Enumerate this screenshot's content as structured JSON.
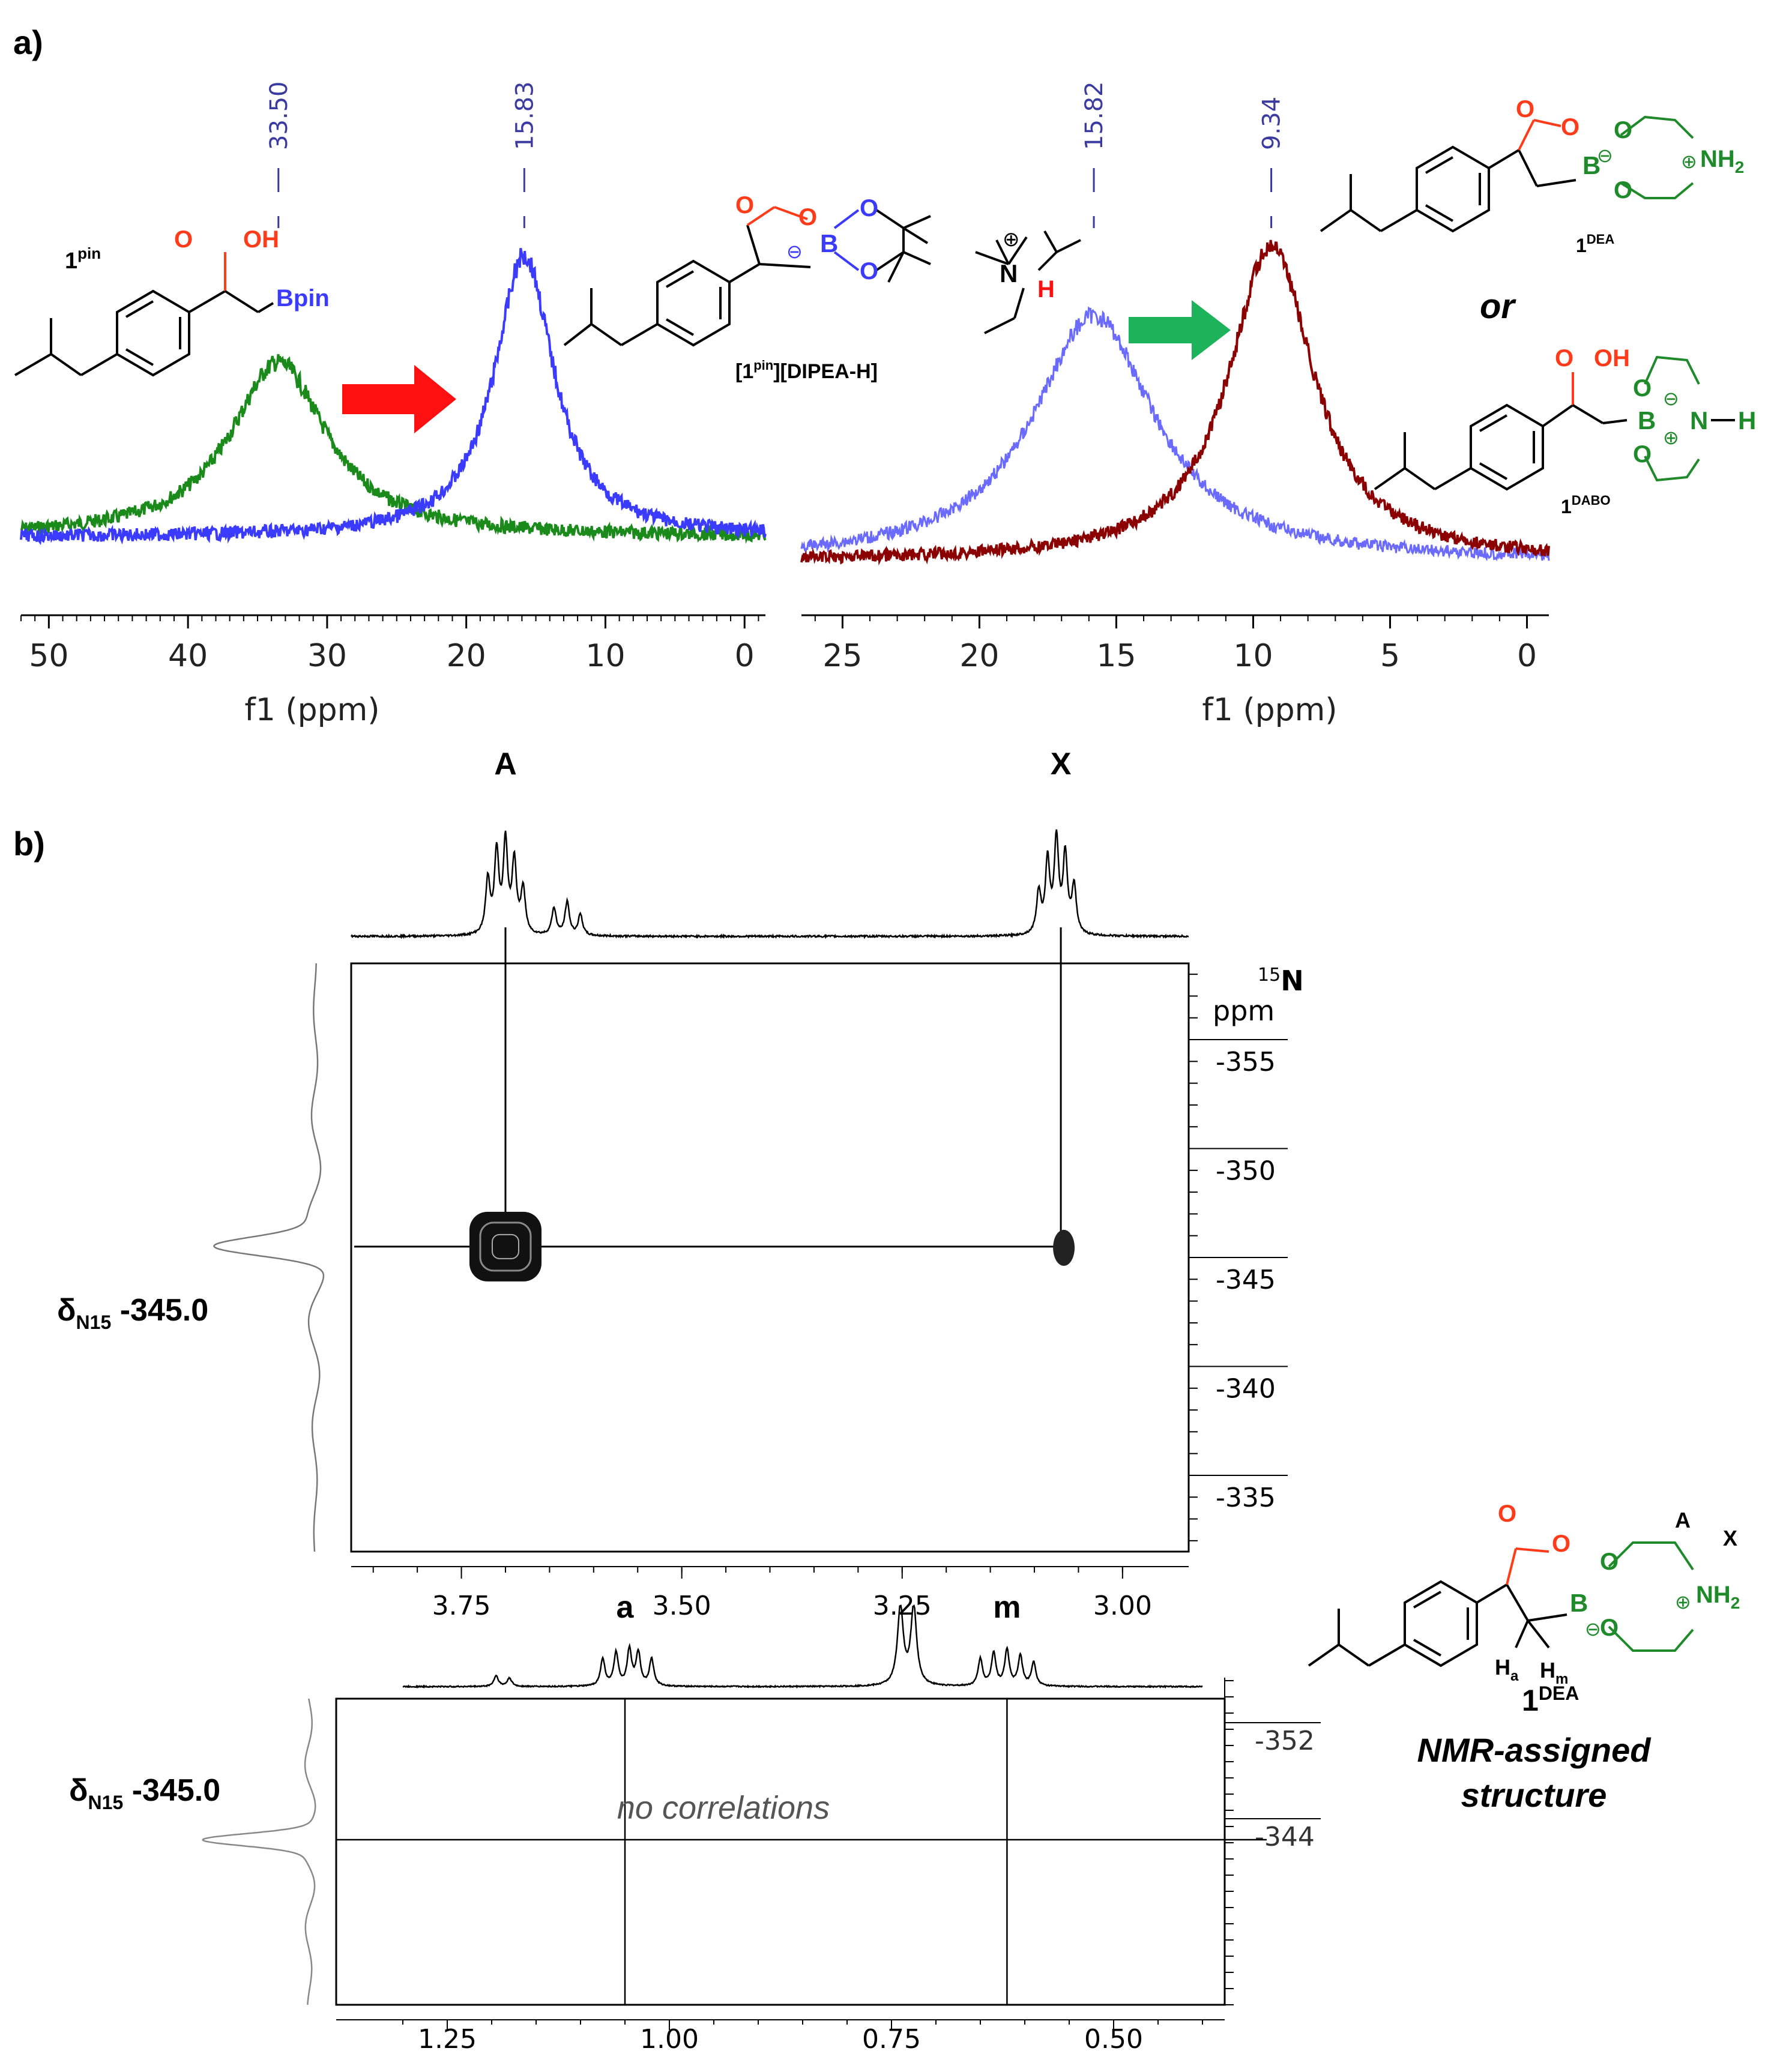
{
  "panels": {
    "a_label": "a)",
    "b_label": "b)"
  },
  "structures": {
    "pin": {
      "label_main": "1",
      "label_sup": "pin",
      "oh": "OH",
      "o_carbonyl": "O",
      "bpin": "Bpin"
    },
    "dipea_salt": {
      "label": "[1",
      "label_sup": "pin",
      "label_rest": "][DIPEA-H]",
      "o1": "O",
      "o2": "O",
      "o3": "O",
      "o4": "O",
      "b": "B",
      "minus": "⊖",
      "n": "N",
      "h": "H",
      "plus": "⊕"
    },
    "dea": {
      "label_main": "1",
      "label_sup": "DEA",
      "o_carbonyl": "O",
      "o_ring": "O",
      "b": "B",
      "minus": "⊖",
      "o_upper": "O",
      "o_lower": "O",
      "plus": "⊕",
      "nh2": "NH",
      "nh2_sub": "2"
    },
    "or_text": "or",
    "dabo": {
      "label_main": "1",
      "label_sup": "DABO",
      "o_carbonyl": "O",
      "oh": "OH",
      "o_upper": "O",
      "o_lower": "O",
      "b": "B",
      "minus": "⊖",
      "plus": "⊕",
      "n": "N",
      "h": "H"
    },
    "assigned": {
      "label_main": "1",
      "label_sup": "DEA",
      "caption_line1": "NMR-assigned",
      "caption_line2": "structure",
      "a": "A",
      "x": "X",
      "ha": "H",
      "ha_sub": "a",
      "hm": "H",
      "hm_sub": "m",
      "o_carbonyl": "O",
      "o_ring": "O",
      "b": "B",
      "minus": "⊖",
      "o_upper": "O",
      "o_lower": "O",
      "plus": "⊕",
      "nh2": "NH",
      "nh2_sub": "2"
    }
  },
  "colors": {
    "green": "#1a8a1a",
    "blue": "#3b3bff",
    "blue_light": "#6a6aff",
    "darkred": "#8b0000",
    "red_arrow": "#ff1010",
    "green_arrow": "#1db35a",
    "orange_red": "#ff3b1a",
    "label_blue": "#3a3aa0",
    "chem_green": "#1f8a2a"
  },
  "chart_data": [
    {
      "type": "line",
      "id": "a-left",
      "xlabel": "f1 (ppm)",
      "xlim": [
        52,
        -1.5
      ],
      "x_ticks": [
        50,
        40,
        30,
        20,
        10,
        0
      ],
      "peak_labels": [
        "33.50",
        "15.83"
      ],
      "series": [
        {
          "color": "green",
          "peaks": [
            {
              "x": 33.5,
              "height": 0.62,
              "width": 4.2
            }
          ]
        },
        {
          "color": "blue",
          "peaks": [
            {
              "x": 15.83,
              "height": 1.0,
              "width": 2.6
            }
          ]
        }
      ]
    },
    {
      "type": "line",
      "id": "a-right",
      "xlabel": "f1 (ppm)",
      "xlim": [
        26.5,
        -0.8
      ],
      "x_ticks": [
        25,
        20,
        15,
        10,
        5,
        0
      ],
      "peak_labels": [
        "15.82",
        "9.34"
      ],
      "series": [
        {
          "color": "blue_light",
          "peaks": [
            {
              "x": 15.82,
              "height": 0.78,
              "width": 2.7
            }
          ]
        },
        {
          "color": "darkred",
          "peaks": [
            {
              "x": 9.34,
              "height": 1.0,
              "width": 1.9
            }
          ]
        }
      ]
    },
    {
      "type": "scatter",
      "id": "b-hmbc-upper",
      "x_ticks": [
        "3.75",
        "3.50",
        "3.25",
        "3.00"
      ],
      "y_ticks": [
        "-355",
        "-350",
        "-345",
        "-340",
        "-335"
      ],
      "y_unit_line1": "15N",
      "y_unit_line2": "ppm",
      "peak_letters": [
        "A",
        "X"
      ],
      "proton_peaks": [
        3.7,
        3.07
      ],
      "n15_shift_label": "δ",
      "n15_shift_sub": "N15",
      "n15_shift_value": "-345.0",
      "crosspeaks": [
        {
          "x": 3.7,
          "y": -345.0,
          "size": "large"
        },
        {
          "x": 3.07,
          "y": -345.0,
          "size": "small"
        }
      ]
    },
    {
      "type": "scatter",
      "id": "b-hmbc-lower",
      "x_ticks": [
        "1.25",
        "1.00",
        "0.75",
        "0.50"
      ],
      "y_ticks": [
        "-352",
        "-344"
      ],
      "peak_letters": [
        "a",
        "m"
      ],
      "proton_peaks": [
        1.05,
        0.62
      ],
      "n15_shift_label": "δ",
      "n15_shift_sub": "N15",
      "n15_shift_value": "-345.0",
      "annotation": "no correlations",
      "crosspeaks": []
    }
  ]
}
